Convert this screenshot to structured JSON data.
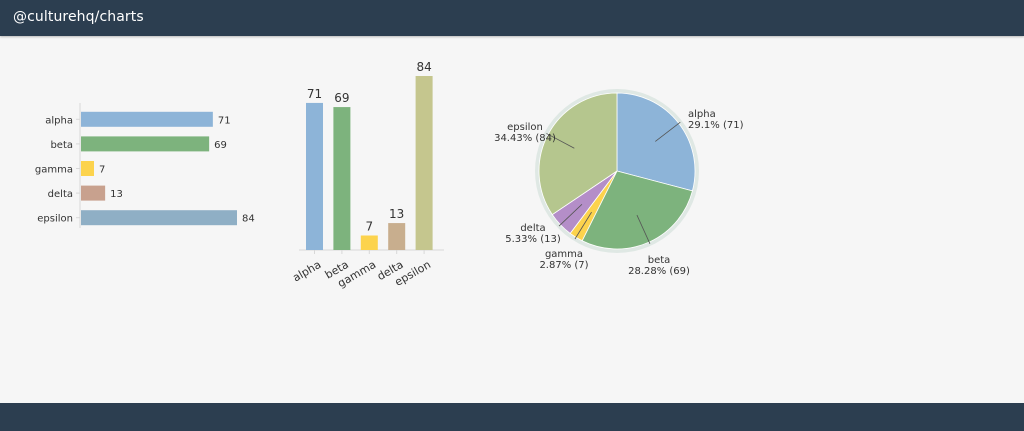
{
  "header": {
    "title": "@culturehq/charts"
  },
  "colors": {
    "header_bg": "#2c3e50",
    "page_bg": "#f6f6f6",
    "series": [
      "#8db4d8",
      "#7db37d",
      "#fcd34d",
      "#c8a18e",
      "#8fafc5"
    ]
  },
  "chart_data": [
    {
      "type": "bar",
      "orientation": "horizontal",
      "categories": [
        "alpha",
        "beta",
        "gamma",
        "delta",
        "epsilon"
      ],
      "values": [
        71,
        69,
        7,
        13,
        84
      ],
      "data_labels": [
        "71",
        "69",
        "7",
        "13",
        "84"
      ],
      "colors": [
        "#8db4d8",
        "#7db37d",
        "#fcd34d",
        "#c8a18e",
        "#8fafc5"
      ],
      "xlim": [
        0,
        84
      ]
    },
    {
      "type": "bar",
      "orientation": "vertical",
      "categories": [
        "alpha",
        "beta",
        "gamma",
        "delta",
        "epsilon"
      ],
      "values": [
        71,
        69,
        7,
        13,
        84
      ],
      "data_labels": [
        "71",
        "69",
        "7",
        "13",
        "84"
      ],
      "colors": [
        "#8db4d8",
        "#7db37d",
        "#fcd34d",
        "#c8ae8e",
        "#c5c68e"
      ],
      "ylim": [
        0,
        84
      ]
    },
    {
      "type": "pie",
      "categories": [
        "alpha",
        "beta",
        "gamma",
        "delta",
        "epsilon"
      ],
      "values": [
        71,
        69,
        7,
        13,
        84
      ],
      "labels": [
        {
          "name": "alpha",
          "detail": "29.1% (71)"
        },
        {
          "name": "beta",
          "detail": "28.28% (69)"
        },
        {
          "name": "gamma",
          "detail": "2.87% (7)"
        },
        {
          "name": "delta",
          "detail": "5.33% (13)"
        },
        {
          "name": "epsilon",
          "detail": "34.43% (84)"
        }
      ],
      "colors": [
        "#8db4d8",
        "#7db37d",
        "#fcd34d",
        "#b48ec8",
        "#b5c68e"
      ]
    }
  ]
}
